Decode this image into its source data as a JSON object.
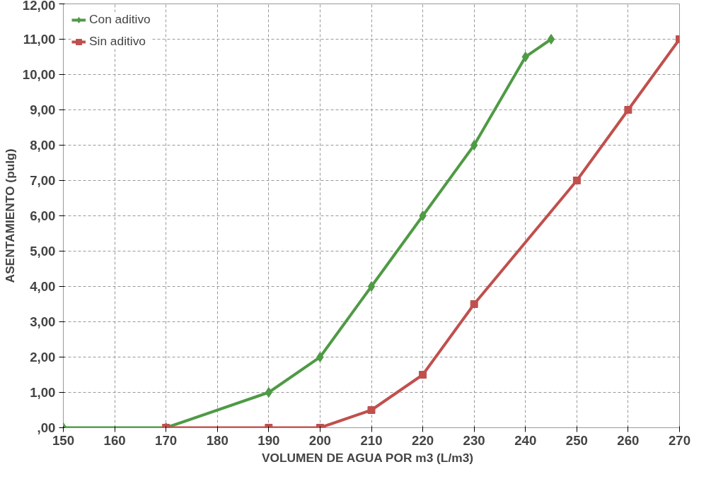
{
  "chart_data": {
    "type": "line",
    "xlabel": "VOLUMEN DE AGUA POR m3   (L/m3)",
    "ylabel": "ASENTAMIENTO (pulg)",
    "xlim": [
      150,
      270
    ],
    "xticks": [
      150,
      160,
      170,
      180,
      190,
      200,
      210,
      220,
      230,
      240,
      250,
      260,
      270
    ],
    "ylim": [
      0,
      12
    ],
    "yticks": [
      {
        "value": 0,
        "label": ",00"
      },
      {
        "value": 1,
        "label": "1,00"
      },
      {
        "value": 2,
        "label": "2,00"
      },
      {
        "value": 3,
        "label": "3,00"
      },
      {
        "value": 4,
        "label": "4,00"
      },
      {
        "value": 5,
        "label": "5,00"
      },
      {
        "value": 6,
        "label": "6,00"
      },
      {
        "value": 7,
        "label": "7,00"
      },
      {
        "value": 8,
        "label": "8,00"
      },
      {
        "value": 9,
        "label": "9,00"
      },
      {
        "value": 10,
        "label": "10,00"
      },
      {
        "value": 11,
        "label": "11,00"
      },
      {
        "value": 12,
        "label": "12,00"
      }
    ],
    "grid": true,
    "legend": "top left",
    "series": [
      {
        "name": "Con aditivo",
        "color": "#4f9a45",
        "marker": "diamond",
        "x": [
          150,
          170,
          190,
          200,
          210,
          220,
          230,
          240,
          245
        ],
        "values": [
          0,
          0,
          1,
          2,
          4,
          6,
          8,
          10.5,
          11
        ]
      },
      {
        "name": "Sin aditivo",
        "color": "#c0504d",
        "marker": "square",
        "x": [
          170,
          190,
          200,
          210,
          220,
          230,
          250,
          260,
          270
        ],
        "values": [
          0,
          0,
          0,
          0.5,
          1.5,
          3.5,
          7,
          9,
          11
        ]
      }
    ]
  }
}
